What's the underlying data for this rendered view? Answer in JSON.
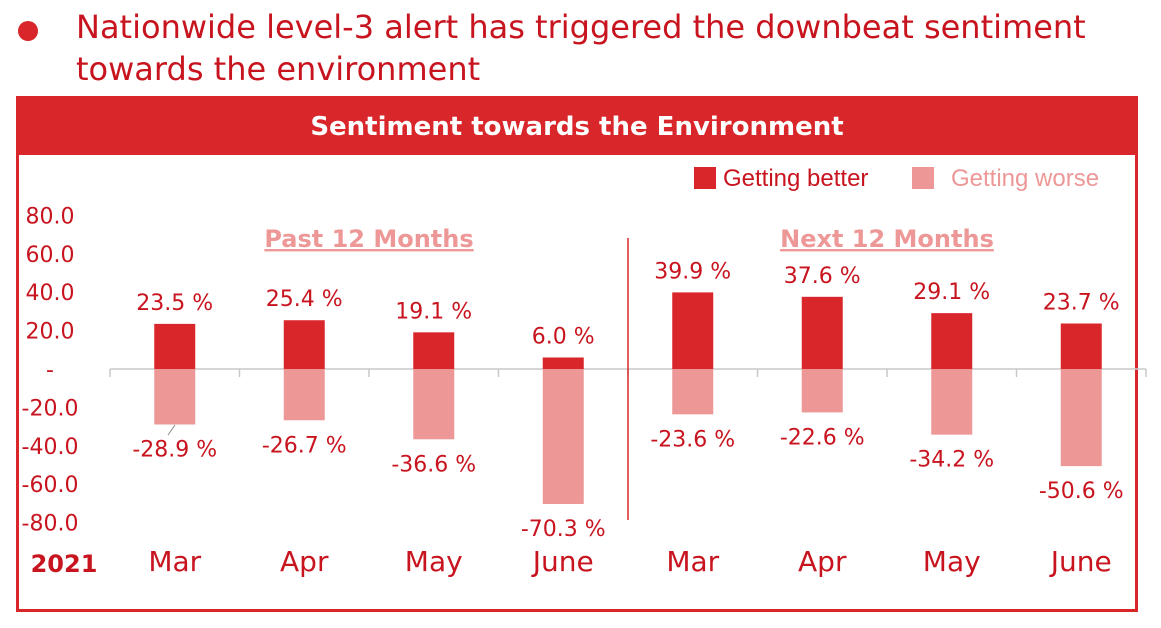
{
  "headline": "Nationwide level-3 alert has triggered the downbeat sentiment towards the environment",
  "colors": {
    "better": "#d8262b",
    "worse": "#ed9797",
    "text": "#c8141e",
    "axis": "#c8141e",
    "section": "#ed9797"
  },
  "chart_data": {
    "type": "bar",
    "title": "Sentiment towards the Environment",
    "year_label": "2021",
    "categories": [
      "Mar",
      "Apr",
      "May",
      "June",
      "Mar",
      "Apr",
      "May",
      "June"
    ],
    "section_labels": [
      "Past 12 Months",
      "Next 12 Months"
    ],
    "series": [
      {
        "name": "Getting better",
        "values": [
          23.5,
          25.4,
          19.1,
          6.0,
          39.9,
          37.6,
          29.1,
          23.7
        ]
      },
      {
        "name": "Getting worse",
        "values": [
          -28.9,
          -26.7,
          -36.6,
          -70.3,
          -23.6,
          -22.6,
          -34.2,
          -50.6
        ]
      }
    ],
    "value_labels_better": [
      "23.5 %",
      "25.4 %",
      "19.1 %",
      "6.0 %",
      "39.9 %",
      "37.6 %",
      "29.1 %",
      "23.7 %"
    ],
    "value_labels_worse": [
      "-28.9 %",
      "-26.7 %",
      "-36.6 %",
      "-70.3 %",
      "-23.6 %",
      "-22.6 %",
      "-34.2 %",
      "-50.6 %"
    ],
    "y_ticks": [
      "80.0",
      "60.0",
      "40.0",
      "20.0",
      "-",
      "-20.0",
      "-40.0",
      "-60.0",
      "-80.0"
    ],
    "ylim": [
      -80,
      80
    ],
    "legend_position": "top-right",
    "grid": false
  }
}
